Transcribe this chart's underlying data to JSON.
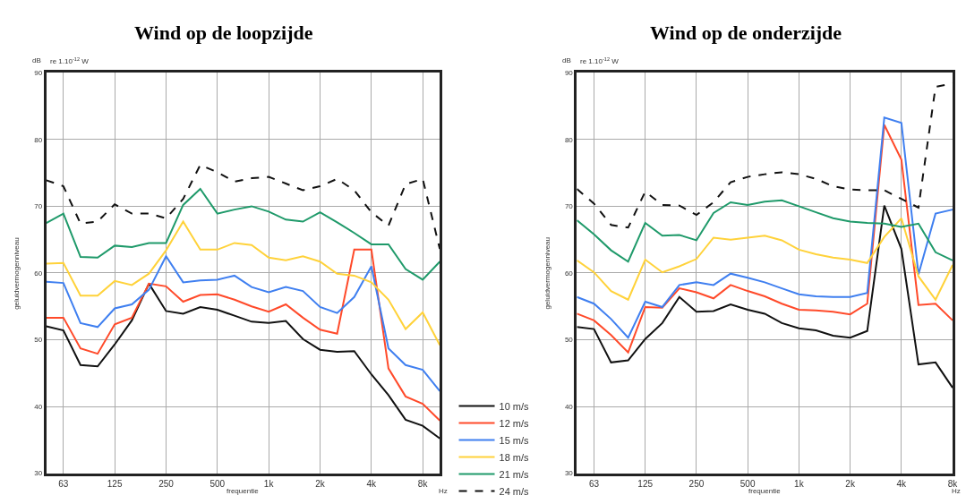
{
  "chart_data": [
    {
      "type": "line",
      "title": "Wind op de loopzijde",
      "xlabel": "frequentie",
      "ylabel": "geluidvermogenniveau",
      "annotations": [
        "dB",
        "re 1.10$^{-12}$ W",
        "Hz"
      ],
      "categories": [
        null,
        "63",
        null,
        null,
        "125",
        null,
        null,
        "250",
        null,
        null,
        "500",
        null,
        null,
        "1k",
        null,
        null,
        "2k",
        null,
        null,
        "4k",
        null,
        null,
        "8k",
        null
      ],
      "ylim": [
        30,
        90
      ],
      "yticks": [
        30,
        40,
        50,
        60,
        70,
        80,
        90
      ],
      "grid": true,
      "legend": "right",
      "marker": "none",
      "series": [
        {
          "name": "10 m/s",
          "color": "#111111",
          "line_style": "solid",
          "values": [
            52.0,
            51.4,
            46.2,
            46.0,
            49.3,
            52.9,
            58.4,
            54.3,
            53.9,
            54.9,
            54.5,
            53.6,
            52.7,
            52.5,
            52.8,
            50.1,
            48.5,
            48.2,
            48.3,
            44.8,
            41.7,
            38.0,
            37.1,
            35.2
          ]
        },
        {
          "name": "12 m/s",
          "color": "#ff4a2a",
          "line_style": "solid",
          "values": [
            53.3,
            53.3,
            48.7,
            47.9,
            52.3,
            53.3,
            58.4,
            58.0,
            55.7,
            56.7,
            56.8,
            56.0,
            55.0,
            54.2,
            55.3,
            53.3,
            51.5,
            50.9,
            63.5,
            63.5,
            45.7,
            41.5,
            40.4,
            37.9
          ]
        },
        {
          "name": "15 m/s",
          "color": "#3f7ff0",
          "line_style": "solid",
          "values": [
            58.7,
            58.5,
            52.5,
            51.9,
            54.7,
            55.3,
            57.5,
            62.5,
            58.6,
            58.9,
            59.0,
            59.6,
            57.9,
            57.1,
            57.9,
            57.3,
            54.9,
            54.0,
            56.4,
            61.0,
            48.7,
            46.2,
            45.5,
            42.3
          ]
        },
        {
          "name": "18 m/s",
          "color": "#ffd23a",
          "line_style": "solid",
          "values": [
            61.4,
            61.5,
            56.6,
            56.6,
            58.8,
            58.2,
            59.9,
            63.4,
            67.7,
            63.5,
            63.5,
            64.5,
            64.2,
            62.3,
            61.9,
            62.5,
            61.7,
            59.9,
            59.6,
            58.6,
            56.0,
            51.6,
            54.1,
            49.2
          ]
        },
        {
          "name": "21 m/s",
          "color": "#1f9a6a",
          "line_style": "solid",
          "values": [
            67.5,
            68.9,
            62.4,
            62.3,
            64.1,
            63.9,
            64.5,
            64.5,
            70.2,
            72.6,
            68.9,
            69.5,
            70.0,
            69.2,
            68.0,
            67.7,
            69.1,
            67.6,
            66.0,
            64.3,
            64.3,
            60.6,
            59.0,
            61.7
          ]
        },
        {
          "name": "24 m/s",
          "color": "#111111",
          "line_style": "dashed",
          "values": [
            73.9,
            73.0,
            67.4,
            67.7,
            70.3,
            68.9,
            68.9,
            68.2,
            71.1,
            76.2,
            75.1,
            73.7,
            74.2,
            74.4,
            73.4,
            72.4,
            73.0,
            74.1,
            72.4,
            69.1,
            67.1,
            73.3,
            74.1,
            63.6
          ]
        }
      ]
    },
    {
      "type": "line",
      "title": "Wind op de onderzijde",
      "xlabel": "frequentie",
      "ylabel": "geluidvermogenniveau",
      "annotations": [
        "dB",
        "re 1.10$^{-12}$ W",
        "Hz"
      ],
      "categories": [
        null,
        "63",
        null,
        null,
        "125",
        null,
        null,
        "250",
        null,
        null,
        "500",
        null,
        null,
        "1k",
        null,
        null,
        "2k",
        null,
        null,
        "4k",
        null,
        null,
        "8k"
      ],
      "ylim": [
        30,
        90
      ],
      "yticks": [
        30,
        40,
        50,
        60,
        70,
        80,
        90
      ],
      "grid": true,
      "marker": "none",
      "series": [
        {
          "name": "10 m/s",
          "color": "#111111",
          "line_style": "solid",
          "values": [
            51.9,
            51.6,
            46.6,
            46.9,
            50.1,
            52.5,
            56.4,
            54.2,
            54.3,
            55.3,
            54.5,
            53.9,
            52.5,
            51.7,
            51.4,
            50.6,
            50.3,
            51.3,
            70.1,
            63.6,
            46.3,
            46.6,
            42.8
          ]
        },
        {
          "name": "12 m/s",
          "color": "#ff4a2a",
          "line_style": "solid",
          "values": [
            53.9,
            52.9,
            50.7,
            48.1,
            54.9,
            54.8,
            57.7,
            57.1,
            56.2,
            58.2,
            57.3,
            56.5,
            55.4,
            54.5,
            54.4,
            54.2,
            53.8,
            55.4,
            82.2,
            77.0,
            55.2,
            55.4,
            52.9
          ]
        },
        {
          "name": "15 m/s",
          "color": "#3f7ff0",
          "line_style": "solid",
          "values": [
            56.4,
            55.4,
            53.1,
            50.3,
            55.7,
            54.9,
            58.2,
            58.6,
            58.2,
            59.9,
            59.3,
            58.6,
            57.7,
            56.8,
            56.5,
            56.4,
            56.4,
            57.0,
            83.3,
            82.5,
            59.8,
            68.9,
            69.5
          ]
        },
        {
          "name": "18 m/s",
          "color": "#ffd23a",
          "line_style": "solid",
          "values": [
            61.9,
            60.1,
            57.3,
            56.0,
            62.0,
            60.1,
            61.0,
            62.1,
            65.3,
            65.0,
            65.3,
            65.6,
            64.9,
            63.5,
            62.8,
            62.3,
            62.0,
            61.5,
            65.4,
            68.2,
            59.5,
            56.0,
            61.2
          ]
        },
        {
          "name": "21 m/s",
          "color": "#1f9a6a",
          "line_style": "solid",
          "values": [
            67.9,
            65.8,
            63.4,
            61.7,
            67.5,
            65.6,
            65.7,
            64.9,
            69.0,
            70.6,
            70.2,
            70.7,
            70.9,
            70.0,
            69.1,
            68.2,
            67.7,
            67.5,
            67.4,
            66.9,
            67.4,
            63.1,
            61.9
          ]
        },
        {
          "name": "24 m/s",
          "color": "#111111",
          "line_style": "dashed",
          "values": [
            72.6,
            70.4,
            67.2,
            66.8,
            72.2,
            70.2,
            70.1,
            68.7,
            70.6,
            73.6,
            74.4,
            74.8,
            75.1,
            74.8,
            74.1,
            73.0,
            72.5,
            72.4,
            72.4,
            71.1,
            69.8,
            87.9,
            88.4
          ]
        }
      ]
    }
  ]
}
